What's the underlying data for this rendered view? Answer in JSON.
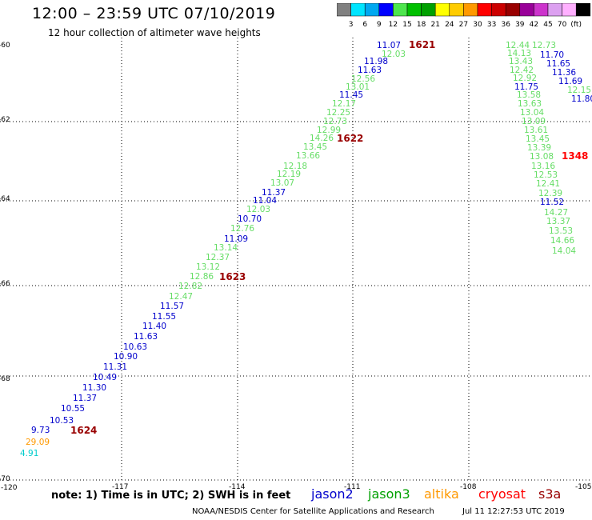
{
  "header": {
    "title": "12:00 – 23:59 UTC 07/10/2019",
    "subtitle": "12 hour collection of altimeter wave heights"
  },
  "colorbar": {
    "colors": [
      "#808080",
      "#00e5ff",
      "#00a8f0",
      "#0000ff",
      "#4de64d",
      "#00c000",
      "#00a000",
      "#ffff00",
      "#ffcc00",
      "#ff9900",
      "#ff0000",
      "#cc0000",
      "#990000",
      "#990099",
      "#cc33cc",
      "#dca0f0",
      "#ffb0ff",
      "#000000"
    ],
    "labels": [
      "3",
      "6",
      "9",
      "12",
      "15",
      "18",
      "21",
      "24",
      "27",
      "30",
      "33",
      "36",
      "39",
      "42",
      "45",
      "70",
      "(ft)"
    ]
  },
  "axes": {
    "x_ticks": [
      "-120",
      "-117",
      "-114",
      "-111",
      "-108",
      "-105"
    ],
    "y_ticks": [
      "-60",
      "-62",
      "-64",
      "-66",
      "-68",
      "-70"
    ]
  },
  "legend": {
    "colors": {
      "jason2": "#0000cc",
      "jason3": "#00a000",
      "altika": "#ff9900",
      "cryosat": "#ff0000",
      "s3a": "#990000"
    }
  },
  "observations": [
    {
      "text": "11.07",
      "color": "#0000cc"
    },
    {
      "text": "12.03",
      "color": "#66dd66"
    },
    {
      "text": "11.98",
      "color": "#0000cc"
    },
    {
      "text": "11.63",
      "color": "#0000cc"
    },
    {
      "text": "12.56",
      "color": "#66dd66"
    },
    {
      "text": "13.01",
      "color": "#66dd66"
    },
    {
      "text": "11.45",
      "color": "#0000cc"
    },
    {
      "text": "12.17",
      "color": "#66dd66"
    },
    {
      "text": "12.25",
      "color": "#66dd66"
    },
    {
      "text": "12.73",
      "color": "#66dd66"
    },
    {
      "text": "12.99",
      "color": "#66dd66"
    },
    {
      "text": "14.26",
      "color": "#66dd66"
    },
    {
      "text": "13.45",
      "color": "#66dd66"
    },
    {
      "text": "13.66",
      "color": "#66dd66"
    },
    {
      "text": "12.18",
      "color": "#66dd66"
    },
    {
      "text": "12.19",
      "color": "#66dd66"
    },
    {
      "text": "13.07",
      "color": "#66dd66"
    },
    {
      "text": "11.37",
      "color": "#0000cc"
    },
    {
      "text": "11.04",
      "color": "#0000cc"
    },
    {
      "text": "12.03",
      "color": "#66dd66"
    },
    {
      "text": "10.70",
      "color": "#0000cc"
    },
    {
      "text": "12.76",
      "color": "#66dd66"
    },
    {
      "text": "11.09",
      "color": "#0000cc"
    },
    {
      "text": "13.14",
      "color": "#66dd66"
    },
    {
      "text": "12.37",
      "color": "#66dd66"
    },
    {
      "text": "13.12",
      "color": "#66dd66"
    },
    {
      "text": "12.86",
      "color": "#66dd66"
    },
    {
      "text": "12.82",
      "color": "#66dd66"
    },
    {
      "text": "12.47",
      "color": "#66dd66"
    },
    {
      "text": "11.57",
      "color": "#0000cc"
    },
    {
      "text": "11.55",
      "color": "#0000cc"
    },
    {
      "text": "11.40",
      "color": "#0000cc"
    },
    {
      "text": "11.63",
      "color": "#0000cc"
    },
    {
      "text": "10.63",
      "color": "#0000cc"
    },
    {
      "text": "10.90",
      "color": "#0000cc"
    },
    {
      "text": "11.31",
      "color": "#0000cc"
    },
    {
      "text": "10.49",
      "color": "#0000cc"
    },
    {
      "text": "11.30",
      "color": "#0000cc"
    },
    {
      "text": "11.37",
      "color": "#0000cc"
    },
    {
      "text": "10.55",
      "color": "#0000cc"
    },
    {
      "text": "10.53",
      "color": "#0000cc"
    },
    {
      "text": "9.73",
      "color": "#0000cc"
    },
    {
      "text": "29.09",
      "color": "#ff9900"
    },
    {
      "text": "4.91",
      "color": "#00cccc"
    },
    {
      "text": "12.44",
      "color": "#66dd66"
    },
    {
      "text": "12.73",
      "color": "#66dd66"
    },
    {
      "text": "14.13",
      "color": "#66dd66"
    },
    {
      "text": "11.70",
      "color": "#0000cc"
    },
    {
      "text": "13.43",
      "color": "#66dd66"
    },
    {
      "text": "11.65",
      "color": "#0000cc"
    },
    {
      "text": "12.42",
      "color": "#66dd66"
    },
    {
      "text": "11.36",
      "color": "#0000cc"
    },
    {
      "text": "12.92",
      "color": "#66dd66"
    },
    {
      "text": "11.69",
      "color": "#0000cc"
    },
    {
      "text": "11.75",
      "color": "#0000cc"
    },
    {
      "text": "12.15",
      "color": "#66dd66"
    },
    {
      "text": "13.58",
      "color": "#66dd66"
    },
    {
      "text": "11.80",
      "color": "#0000cc"
    },
    {
      "text": "13.63",
      "color": "#66dd66"
    },
    {
      "text": "13.04",
      "color": "#66dd66"
    },
    {
      "text": "13.09",
      "color": "#66dd66"
    },
    {
      "text": "13.61",
      "color": "#66dd66"
    },
    {
      "text": "13.45",
      "color": "#66dd66"
    },
    {
      "text": "13.39",
      "color": "#66dd66"
    },
    {
      "text": "13.08",
      "color": "#66dd66"
    },
    {
      "text": "13.16",
      "color": "#66dd66"
    },
    {
      "text": "12.53",
      "color": "#66dd66"
    },
    {
      "text": "12.41",
      "color": "#66dd66"
    },
    {
      "text": "12.39",
      "color": "#66dd66"
    },
    {
      "text": "11.52",
      "color": "#0000cc"
    },
    {
      "text": "14.27",
      "color": "#66dd66"
    },
    {
      "text": "13.37",
      "color": "#66dd66"
    },
    {
      "text": "13.53",
      "color": "#66dd66"
    },
    {
      "text": "14.66",
      "color": "#66dd66"
    },
    {
      "text": "14.04",
      "color": "#66dd66"
    }
  ],
  "time_labels": [
    {
      "text": "1621",
      "color": "#990000"
    },
    {
      "text": "1622",
      "color": "#990000"
    },
    {
      "text": "1623",
      "color": "#990000"
    },
    {
      "text": "1624",
      "color": "#990000"
    },
    {
      "text": "1348",
      "color": "#ff0000"
    }
  ],
  "note": "note:  1) Time is in UTC;  2) SWH is in feet",
  "satellites": [
    {
      "name": "jason2",
      "color": "#0000cc"
    },
    {
      "name": "jason3",
      "color": "#00a000"
    },
    {
      "name": "altika",
      "color": "#ff9900"
    },
    {
      "name": "cryosat",
      "color": "#ff0000"
    },
    {
      "name": "s3a",
      "color": "#990000"
    }
  ],
  "footer": {
    "credit": "NOAA/NESDIS Center for Satellite Applications and Research",
    "timestamp": "Jul 11 12:27:53 UTC 2019"
  }
}
